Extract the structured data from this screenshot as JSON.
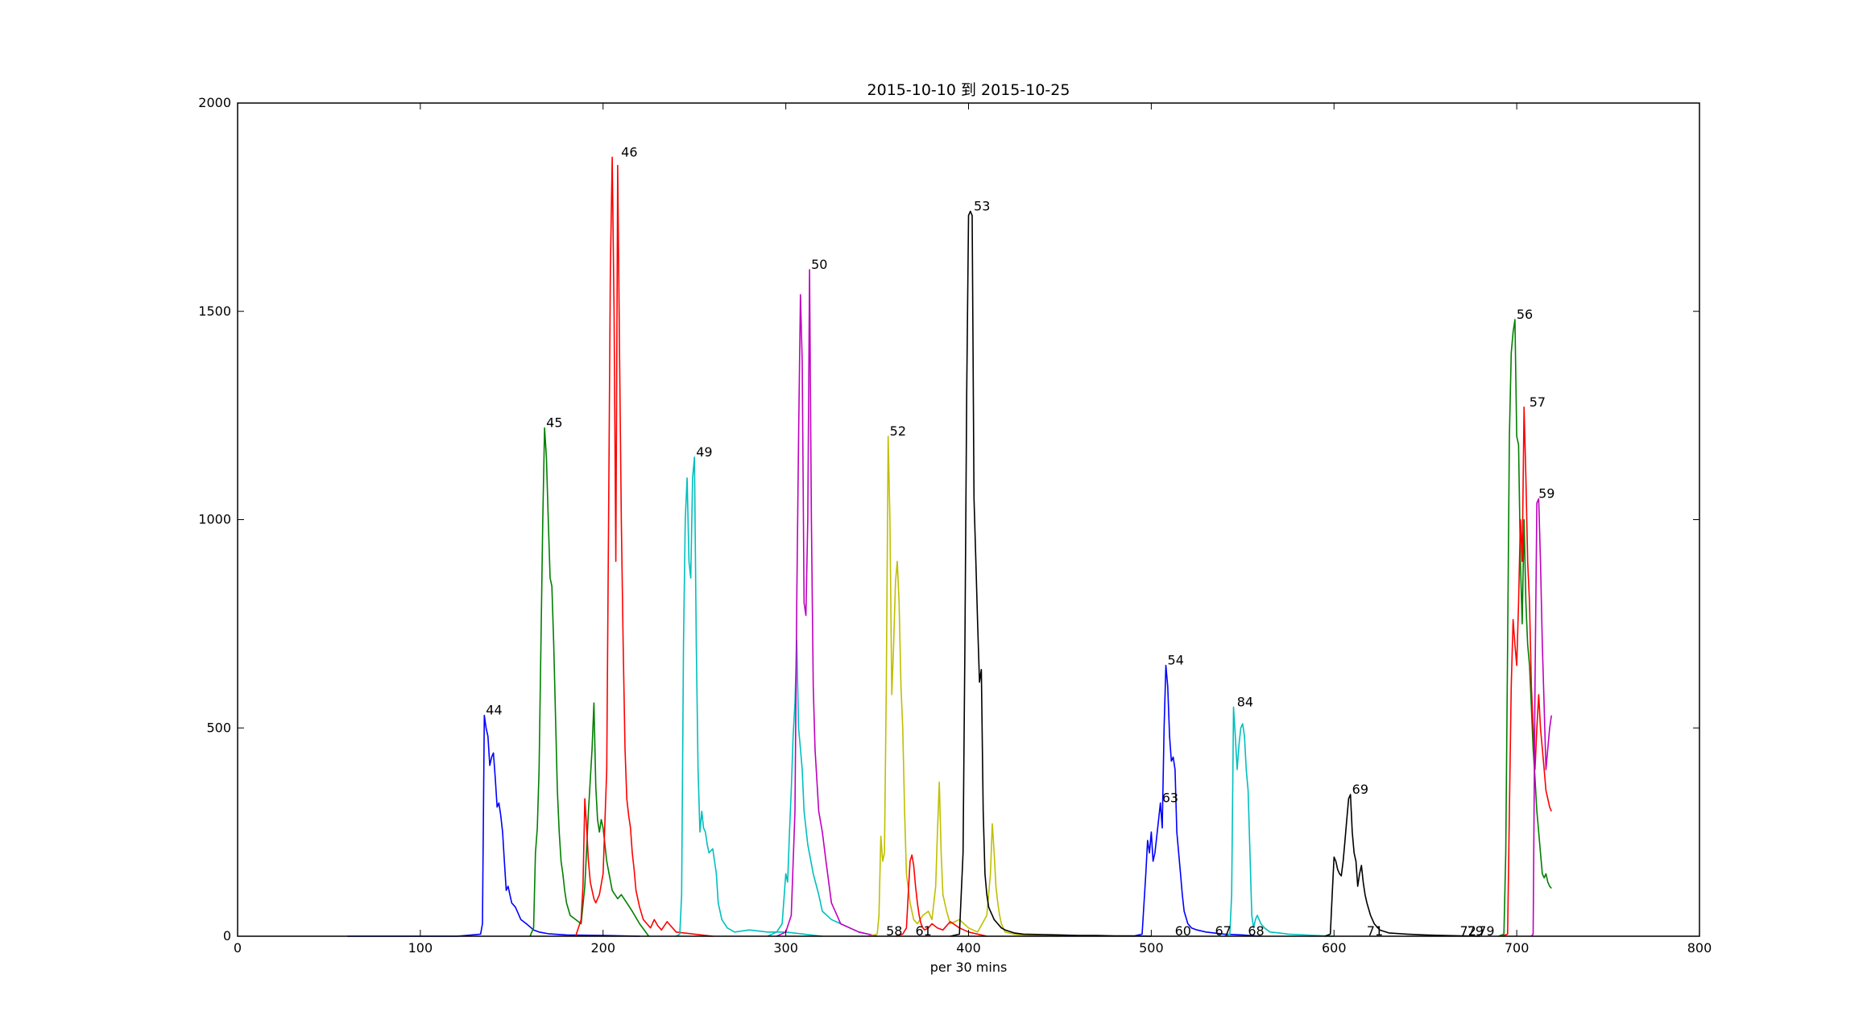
{
  "chart_data": {
    "type": "line",
    "title": "2015-10-10 到 2015-10-25",
    "xlabel": "per 30 mins",
    "ylabel": "",
    "xlim": [
      0,
      800
    ],
    "ylim": [
      0,
      2000
    ],
    "xticks": [
      0,
      100,
      200,
      300,
      400,
      500,
      600,
      700,
      800
    ],
    "yticks": [
      0,
      500,
      1000,
      1500,
      2000
    ],
    "grid": false,
    "series": [
      {
        "color": "#0000ff",
        "x": [
          60,
          120,
          133,
          134,
          135,
          136,
          137,
          138,
          139,
          140,
          141,
          142,
          143,
          144,
          145,
          146,
          147,
          148,
          150,
          152,
          155,
          158,
          162,
          165,
          170,
          180,
          200,
          220
        ],
        "y": [
          0,
          0,
          5,
          30,
          530,
          500,
          480,
          410,
          430,
          440,
          380,
          310,
          320,
          290,
          250,
          180,
          110,
          120,
          80,
          70,
          40,
          30,
          15,
          10,
          6,
          3,
          2,
          0
        ]
      },
      {
        "color": "#008000",
        "x": [
          160,
          162,
          163,
          164,
          165,
          166,
          167,
          168,
          169,
          170,
          171,
          172,
          173,
          174,
          175,
          176,
          177,
          178,
          179,
          180,
          182,
          185,
          188,
          190,
          192,
          194,
          195,
          196,
          197,
          198,
          199,
          200,
          202,
          205,
          208,
          210,
          213,
          216,
          220,
          225
        ],
        "y": [
          0,
          20,
          200,
          260,
          400,
          700,
          1000,
          1220,
          1150,
          1000,
          860,
          840,
          700,
          520,
          350,
          250,
          180,
          150,
          110,
          80,
          50,
          40,
          30,
          120,
          300,
          450,
          560,
          360,
          280,
          250,
          280,
          260,
          180,
          110,
          90,
          100,
          80,
          60,
          30,
          0
        ]
      },
      {
        "color": "#ff0000",
        "x": [
          185,
          188,
          189,
          190,
          191,
          192,
          193,
          194,
          195,
          196,
          198,
          200,
          202,
          203,
          204,
          205,
          206,
          207,
          208,
          209,
          210,
          211,
          212,
          213,
          214,
          215,
          216,
          217,
          218,
          220,
          222,
          224,
          226,
          228,
          230,
          232,
          235,
          240,
          250,
          260
        ],
        "y": [
          0,
          40,
          120,
          330,
          260,
          180,
          130,
          110,
          90,
          80,
          100,
          150,
          400,
          1000,
          1600,
          1870,
          1500,
          900,
          1850,
          1400,
          1000,
          700,
          450,
          330,
          290,
          260,
          200,
          160,
          110,
          70,
          40,
          30,
          20,
          40,
          25,
          15,
          35,
          10,
          5,
          0
        ]
      },
      {
        "color": "#00bfbf",
        "x": [
          240,
          242,
          243,
          244,
          245,
          246,
          247,
          248,
          249,
          250,
          251,
          252,
          253,
          254,
          255,
          256,
          257,
          258,
          260,
          262,
          263,
          265,
          268,
          272,
          280,
          290,
          300,
          310,
          320
        ],
        "y": [
          0,
          5,
          100,
          700,
          1000,
          1100,
          900,
          860,
          1100,
          1150,
          700,
          400,
          250,
          300,
          260,
          250,
          220,
          200,
          210,
          150,
          80,
          40,
          20,
          10,
          15,
          10,
          10,
          5,
          0
        ]
      },
      {
        "color": "#00bfbf",
        "x": [
          290,
          295,
          298,
          300,
          301,
          302,
          303,
          304,
          305,
          306,
          307,
          308,
          309,
          310,
          312,
          315,
          318,
          320,
          325,
          330,
          335,
          340,
          345,
          350
        ],
        "y": [
          0,
          10,
          30,
          150,
          130,
          250,
          350,
          480,
          560,
          710,
          500,
          450,
          400,
          300,
          220,
          150,
          100,
          60,
          40,
          30,
          20,
          10,
          5,
          0
        ]
      },
      {
        "color": "#bf00bf",
        "x": [
          295,
          300,
          303,
          305,
          306,
          307,
          308,
          309,
          310,
          311,
          312,
          313,
          314,
          315,
          316,
          318,
          320,
          322,
          325,
          328,
          330,
          335,
          340,
          345,
          350
        ],
        "y": [
          0,
          10,
          50,
          300,
          800,
          1200,
          1540,
          1380,
          800,
          770,
          1000,
          1600,
          1000,
          600,
          450,
          300,
          250,
          180,
          80,
          50,
          30,
          20,
          10,
          5,
          0
        ]
      },
      {
        "color": "#bfbf00",
        "x": [
          345,
          350,
          351,
          352,
          353,
          354,
          355,
          356,
          357,
          358,
          359,
          360,
          361,
          362,
          363,
          364,
          365,
          366,
          368,
          370,
          372,
          375,
          378,
          380,
          382,
          383,
          384,
          385,
          386,
          388,
          390,
          395,
          400,
          405,
          410,
          412,
          413,
          414,
          415,
          416,
          417,
          418,
          420,
          425,
          430,
          440,
          450
        ],
        "y": [
          0,
          5,
          50,
          240,
          180,
          200,
          600,
          1200,
          1000,
          580,
          700,
          850,
          900,
          800,
          600,
          500,
          300,
          150,
          80,
          40,
          30,
          50,
          60,
          40,
          120,
          250,
          370,
          200,
          100,
          60,
          30,
          40,
          20,
          10,
          50,
          150,
          270,
          200,
          120,
          80,
          50,
          30,
          10,
          5,
          3,
          1,
          0
        ]
      },
      {
        "color": "#ff0000",
        "x": [
          360,
          364,
          366,
          367,
          368,
          369,
          370,
          371,
          372,
          373,
          374,
          375,
          376,
          378,
          380,
          383,
          386,
          390,
          395,
          400,
          410
        ],
        "y": [
          0,
          5,
          20,
          100,
          180,
          195,
          170,
          120,
          80,
          50,
          30,
          20,
          15,
          20,
          30,
          20,
          15,
          35,
          20,
          10,
          0
        ]
      },
      {
        "color": "#000000",
        "x": [
          390,
          395,
          397,
          398,
          399,
          400,
          401,
          402,
          403,
          404,
          405,
          406,
          407,
          408,
          409,
          410,
          411,
          412,
          413,
          414,
          416,
          418,
          420,
          425,
          430,
          440,
          450,
          460,
          470,
          480,
          490,
          500
        ],
        "y": [
          0,
          5,
          200,
          700,
          1300,
          1730,
          1740,
          1730,
          1050,
          900,
          750,
          610,
          640,
          300,
          150,
          100,
          70,
          60,
          50,
          40,
          30,
          20,
          15,
          8,
          5,
          4,
          3,
          2,
          2,
          1,
          1,
          0
        ]
      },
      {
        "color": "#0000ff",
        "x": [
          490,
          495,
          497,
          498,
          499,
          500,
          501,
          502,
          503,
          504,
          505,
          506,
          507,
          508,
          509,
          510,
          511,
          512,
          513,
          514,
          515,
          516,
          517,
          518,
          520,
          522,
          525,
          530,
          540,
          550,
          560
        ],
        "y": [
          0,
          5,
          150,
          230,
          200,
          250,
          180,
          200,
          240,
          280,
          320,
          260,
          500,
          650,
          600,
          480,
          420,
          430,
          400,
          250,
          200,
          150,
          100,
          60,
          30,
          20,
          15,
          10,
          5,
          3,
          0
        ]
      },
      {
        "color": "#00bfbf",
        "x": [
          540,
          543,
          544,
          545,
          546,
          547,
          548,
          549,
          550,
          551,
          552,
          553,
          554,
          555,
          556,
          557,
          558,
          560,
          562,
          565,
          570,
          575,
          580,
          590,
          600
        ],
        "y": [
          0,
          5,
          100,
          550,
          480,
          400,
          460,
          500,
          510,
          480,
          400,
          350,
          200,
          50,
          20,
          40,
          50,
          30,
          20,
          10,
          8,
          5,
          4,
          2,
          0
        ]
      },
      {
        "color": "#000000",
        "x": [
          595,
          598,
          599,
          600,
          601,
          602,
          603,
          604,
          605,
          606,
          607,
          608,
          609,
          610,
          611,
          612,
          613,
          614,
          615,
          616,
          617,
          618,
          620,
          622,
          625,
          630,
          640,
          650,
          660,
          680
        ],
        "y": [
          0,
          5,
          100,
          190,
          180,
          160,
          150,
          145,
          180,
          230,
          280,
          330,
          340,
          250,
          200,
          180,
          120,
          150,
          170,
          130,
          100,
          80,
          50,
          30,
          15,
          8,
          5,
          3,
          2,
          0
        ]
      },
      {
        "color": "#008000",
        "x": [
          690,
          693,
          694,
          695,
          696,
          697,
          698,
          699,
          700,
          701,
          702,
          703,
          704,
          705,
          706,
          707,
          708,
          709,
          710,
          711,
          712,
          713,
          714,
          715,
          716,
          717,
          718,
          719
        ],
        "y": [
          0,
          5,
          200,
          700,
          1200,
          1400,
          1450,
          1480,
          1200,
          1180,
          900,
          750,
          1000,
          800,
          700,
          650,
          550,
          450,
          380,
          300,
          250,
          200,
          150,
          140,
          150,
          130,
          120,
          115
        ]
      },
      {
        "color": "#ff0000",
        "x": [
          692,
          695,
          696,
          697,
          698,
          699,
          700,
          701,
          702,
          703,
          704,
          705,
          706,
          707,
          708,
          709,
          710,
          711,
          712,
          713,
          714,
          715,
          716,
          717,
          718,
          719
        ],
        "y": [
          0,
          5,
          300,
          600,
          760,
          700,
          650,
          800,
          1000,
          900,
          1270,
          1100,
          900,
          800,
          600,
          500,
          400,
          500,
          580,
          500,
          450,
          400,
          350,
          330,
          310,
          300
        ]
      },
      {
        "color": "#bf00bf",
        "x": [
          708,
          709,
          710,
          711,
          712,
          713,
          714,
          715,
          716,
          717,
          718,
          719
        ],
        "y": [
          0,
          5,
          600,
          1040,
          1050,
          900,
          700,
          550,
          400,
          450,
          500,
          530
        ]
      }
    ],
    "annotations": [
      {
        "label": "44",
        "x": 135,
        "y": 530
      },
      {
        "label": "45",
        "x": 168,
        "y": 1220
      },
      {
        "label": "46",
        "x": 209,
        "y": 1870
      },
      {
        "label": "49",
        "x": 250,
        "y": 1150
      },
      {
        "label": "50",
        "x": 313,
        "y": 1600
      },
      {
        "label": "52",
        "x": 356,
        "y": 1200
      },
      {
        "label": "53",
        "x": 402,
        "y": 1740
      },
      {
        "label": "54",
        "x": 508,
        "y": 650
      },
      {
        "label": "63",
        "x": 505,
        "y": 320
      },
      {
        "label": "84",
        "x": 546,
        "y": 550
      },
      {
        "label": "69",
        "x": 609,
        "y": 340
      },
      {
        "label": "56",
        "x": 699,
        "y": 1480
      },
      {
        "label": "57",
        "x": 706,
        "y": 1270
      },
      {
        "label": "59",
        "x": 711,
        "y": 1050
      },
      {
        "label": "58",
        "x": 354,
        "y": 0
      },
      {
        "label": "61",
        "x": 370,
        "y": 0
      },
      {
        "label": "60",
        "x": 512,
        "y": 0
      },
      {
        "label": "67",
        "x": 534,
        "y": 0
      },
      {
        "label": "68",
        "x": 552,
        "y": 0
      },
      {
        "label": "71",
        "x": 617,
        "y": 0
      },
      {
        "label": "72",
        "x": 668,
        "y": 0
      },
      {
        "label": "79",
        "x": 672,
        "y": 0
      },
      {
        "label": "79",
        "x": 678,
        "y": 0
      }
    ]
  }
}
